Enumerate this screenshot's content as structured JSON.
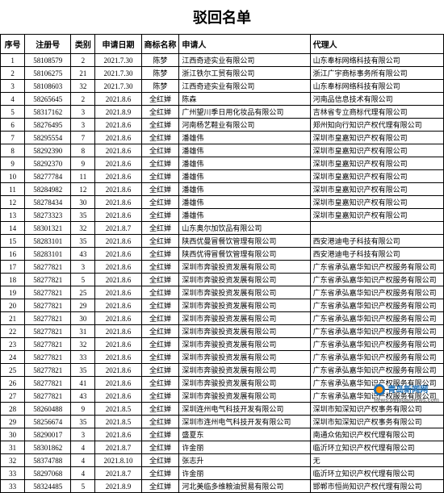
{
  "title": "驳回名单",
  "columns": [
    "序号",
    "注册号",
    "类别",
    "申请日期",
    "商标名称",
    "申请人",
    "代理人"
  ],
  "rows": [
    [
      "1",
      "58108579",
      "2",
      "2021.7.30",
      "陈梦",
      "江西奇迹实业有限公司",
      "山东奉标网络科技有限公司"
    ],
    [
      "2",
      "58106275",
      "21",
      "2021.7.30",
      "陈梦",
      "浙江铁尔工贸有限公司",
      "浙江广宇商标事务所有限公司"
    ],
    [
      "3",
      "58108603",
      "32",
      "2021.7.30",
      "陈梦",
      "江西奇迹实业有限公司",
      "山东奉标网络科技有限公司"
    ],
    [
      "4",
      "58265645",
      "2",
      "2021.8.6",
      "全红婵",
      "陈森",
      "河南品信息技术有限公司"
    ],
    [
      "5",
      "58317162",
      "3",
      "2021.8.9",
      "全红婵",
      "广州望川季日用化妆品有限公司",
      "吉林省专立商标代理有限公司"
    ],
    [
      "6",
      "58276495",
      "3",
      "2021.8.6",
      "全红婵",
      "河南杨艺鞋业有限公司",
      "郑州知向行知识产权代理有限公司"
    ],
    [
      "7",
      "58295554",
      "7",
      "2021.8.6",
      "全红婵",
      "潘雄伟",
      "深圳市皇嘉知识产权有限公司"
    ],
    [
      "8",
      "58292390",
      "8",
      "2021.8.6",
      "全红婵",
      "潘雄伟",
      "深圳市皇嘉知识产权有限公司"
    ],
    [
      "9",
      "58292370",
      "9",
      "2021.8.6",
      "全红婵",
      "潘雄伟",
      "深圳市皇嘉知识产权有限公司"
    ],
    [
      "10",
      "58277784",
      "11",
      "2021.8.6",
      "全红婵",
      "潘雄伟",
      "深圳市皇嘉知识产权有限公司"
    ],
    [
      "11",
      "58284982",
      "12",
      "2021.8.6",
      "全红婵",
      "潘雄伟",
      "深圳市皇嘉知识产权有限公司"
    ],
    [
      "12",
      "58278434",
      "30",
      "2021.8.6",
      "全红婵",
      "潘雄伟",
      "深圳市皇嘉知识产权有限公司"
    ],
    [
      "13",
      "58273323",
      "35",
      "2021.8.6",
      "全红婵",
      "潘雄伟",
      "深圳市皇嘉知识产权有限公司"
    ],
    [
      "14",
      "58301321",
      "32",
      "2021.8.7",
      "全红婵",
      "山东奥尔加饮品有限公司",
      ""
    ],
    [
      "15",
      "58283101",
      "35",
      "2021.8.6",
      "全红婵",
      "陕西优曼冒餐饮管理有限公司",
      "西安港迪电子科技有限公司"
    ],
    [
      "16",
      "58283101",
      "43",
      "2021.8.6",
      "全红婵",
      "陕西优得冒餐饮管理有限公司",
      "西安港迪电子科技有限公司"
    ],
    [
      "17",
      "58277821",
      "3",
      "2021.8.6",
      "全红婵",
      "深圳市奔骏投资发展有限公司",
      "广东省承弘嘉华知识产权服务有限公司"
    ],
    [
      "18",
      "58277821",
      "5",
      "2021.8.6",
      "全红婵",
      "深圳市奔骏投资发展有限公司",
      "广东省承弘嘉华知识产权服务有限公司"
    ],
    [
      "19",
      "58277821",
      "25",
      "2021.8.6",
      "全红婵",
      "深圳市奔骏投资发展有限公司",
      "广东省承弘嘉华知识产权服务有限公司"
    ],
    [
      "20",
      "58277821",
      "29",
      "2021.8.6",
      "全红婵",
      "深圳市奔骏投资发展有限公司",
      "广东省承弘嘉华知识产权服务有限公司"
    ],
    [
      "21",
      "58277821",
      "30",
      "2021.8.6",
      "全红婵",
      "深圳市奔骏投资发展有限公司",
      "广东省承弘嘉华知识产权服务有限公司"
    ],
    [
      "22",
      "58277821",
      "31",
      "2021.8.6",
      "全红婵",
      "深圳市奔骏投资发展有限公司",
      "广东省承弘嘉华知识产权服务有限公司"
    ],
    [
      "23",
      "58277821",
      "32",
      "2021.8.6",
      "全红婵",
      "深圳市奔骏投资发展有限公司",
      "广东省承弘嘉华知识产权服务有限公司"
    ],
    [
      "24",
      "58277821",
      "33",
      "2021.8.6",
      "全红婵",
      "深圳市奔骏投资发展有限公司",
      "广东省承弘嘉华知识产权服务有限公司"
    ],
    [
      "25",
      "58277821",
      "35",
      "2021.8.6",
      "全红婵",
      "深圳市奔骏投资发展有限公司",
      "广东省承弘嘉华知识产权服务有限公司"
    ],
    [
      "26",
      "58277821",
      "41",
      "2021.8.6",
      "全红婵",
      "深圳市奔骏投资发展有限公司",
      "广东省承弘嘉华知识产权服务有限公司"
    ],
    [
      "27",
      "58277821",
      "43",
      "2021.8.6",
      "全红婵",
      "深圳市奔骏投资发展有限公司",
      "广东省承弘嘉华知识产权服务有限公司"
    ],
    [
      "28",
      "58260488",
      "9",
      "2021.8.5",
      "全红婵",
      "深圳连州电气科技开发有限公司",
      "深圳市知深知识产权事务有限公司"
    ],
    [
      "29",
      "58256674",
      "35",
      "2021.8.5",
      "全红婵",
      "深圳市连州电气科技开发有限公司",
      "深圳市知深知识产权事务有限公司"
    ],
    [
      "30",
      "58290017",
      "3",
      "2021.8.6",
      "全红婵",
      "盛夏东",
      "南通众佑知识产权代理有限公司"
    ],
    [
      "31",
      "58301862",
      "4",
      "2021.8.7",
      "全红婵",
      "许金丽",
      "临沂环立知识产权代理有限公司"
    ],
    [
      "32",
      "58374788",
      "4",
      "2021.8.10",
      "全红婵",
      "张志升",
      "无"
    ],
    [
      "33",
      "58297068",
      "4",
      "2021.8.7",
      "全红婵",
      "许金丽",
      "临沂环立知识产权代理有限公司"
    ],
    [
      "33",
      "58324485",
      "5",
      "2021.8.9",
      "全红婵",
      "河北美临多维粮油贸易有限公司",
      "邯郸市恒尚知识产权代理有限公司"
    ]
  ],
  "watermark": "青岛新闻网",
  "watermark_sub": "news.qingdaonews.com"
}
